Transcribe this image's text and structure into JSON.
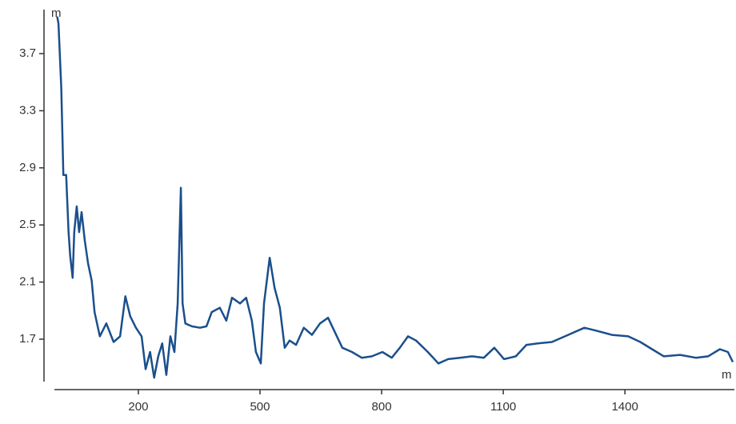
{
  "chart_data": {
    "type": "line",
    "y_unit": "m",
    "x_unit": "m",
    "x": [
      0,
      3,
      10,
      15,
      22,
      28,
      32,
      38,
      42,
      48,
      54,
      60,
      68,
      76,
      85,
      92,
      105,
      121,
      139,
      155,
      168,
      180,
      194,
      208,
      218,
      229,
      239,
      249,
      259,
      269,
      279,
      289,
      297,
      305,
      309,
      316,
      332,
      352,
      368,
      381,
      401,
      417,
      431,
      451,
      466,
      480,
      490,
      502,
      510,
      524,
      536,
      549,
      561,
      573,
      589,
      608,
      628,
      648,
      668,
      683,
      703,
      727,
      751,
      776,
      802,
      825,
      845,
      865,
      885,
      914,
      940,
      964,
      993,
      1023,
      1052,
      1078,
      1102,
      1131,
      1157,
      1185,
      1220,
      1260,
      1300,
      1329,
      1368,
      1408,
      1438,
      1467,
      1496,
      1536,
      1575,
      1605,
      1634,
      1654,
      1666
    ],
    "series": [
      {
        "color": "#1b4f8c",
        "values": [
          3.96,
          3.91,
          3.46,
          2.85,
          2.85,
          2.45,
          2.28,
          2.13,
          2.45,
          2.63,
          2.45,
          2.59,
          2.39,
          2.23,
          2.11,
          1.89,
          1.72,
          1.81,
          1.68,
          1.72,
          2.0,
          1.86,
          1.78,
          1.72,
          1.49,
          1.61,
          1.43,
          1.58,
          1.67,
          1.45,
          1.72,
          1.61,
          1.95,
          2.76,
          1.95,
          1.81,
          1.79,
          1.78,
          1.79,
          1.89,
          1.92,
          1.83,
          1.99,
          1.95,
          1.99,
          1.83,
          1.61,
          1.53,
          1.95,
          2.27,
          2.06,
          1.92,
          1.64,
          1.69,
          1.66,
          1.78,
          1.73,
          1.81,
          1.85,
          1.76,
          1.64,
          1.61,
          1.57,
          1.58,
          1.61,
          1.57,
          1.64,
          1.72,
          1.69,
          1.61,
          1.53,
          1.56,
          1.57,
          1.58,
          1.57,
          1.64,
          1.56,
          1.58,
          1.66,
          1.67,
          1.68,
          1.73,
          1.78,
          1.76,
          1.73,
          1.72,
          1.68,
          1.63,
          1.58,
          1.59,
          1.57,
          1.58,
          1.63,
          1.61,
          1.54
        ]
      }
    ],
    "xlim": [
      -7,
      1670
    ],
    "ylim": [
      1.4,
      4.0
    ],
    "xticks": [
      200,
      500,
      800,
      1100,
      1400
    ],
    "yticks": [
      1.7,
      2.1,
      2.5,
      2.9,
      3.3,
      3.7
    ]
  }
}
